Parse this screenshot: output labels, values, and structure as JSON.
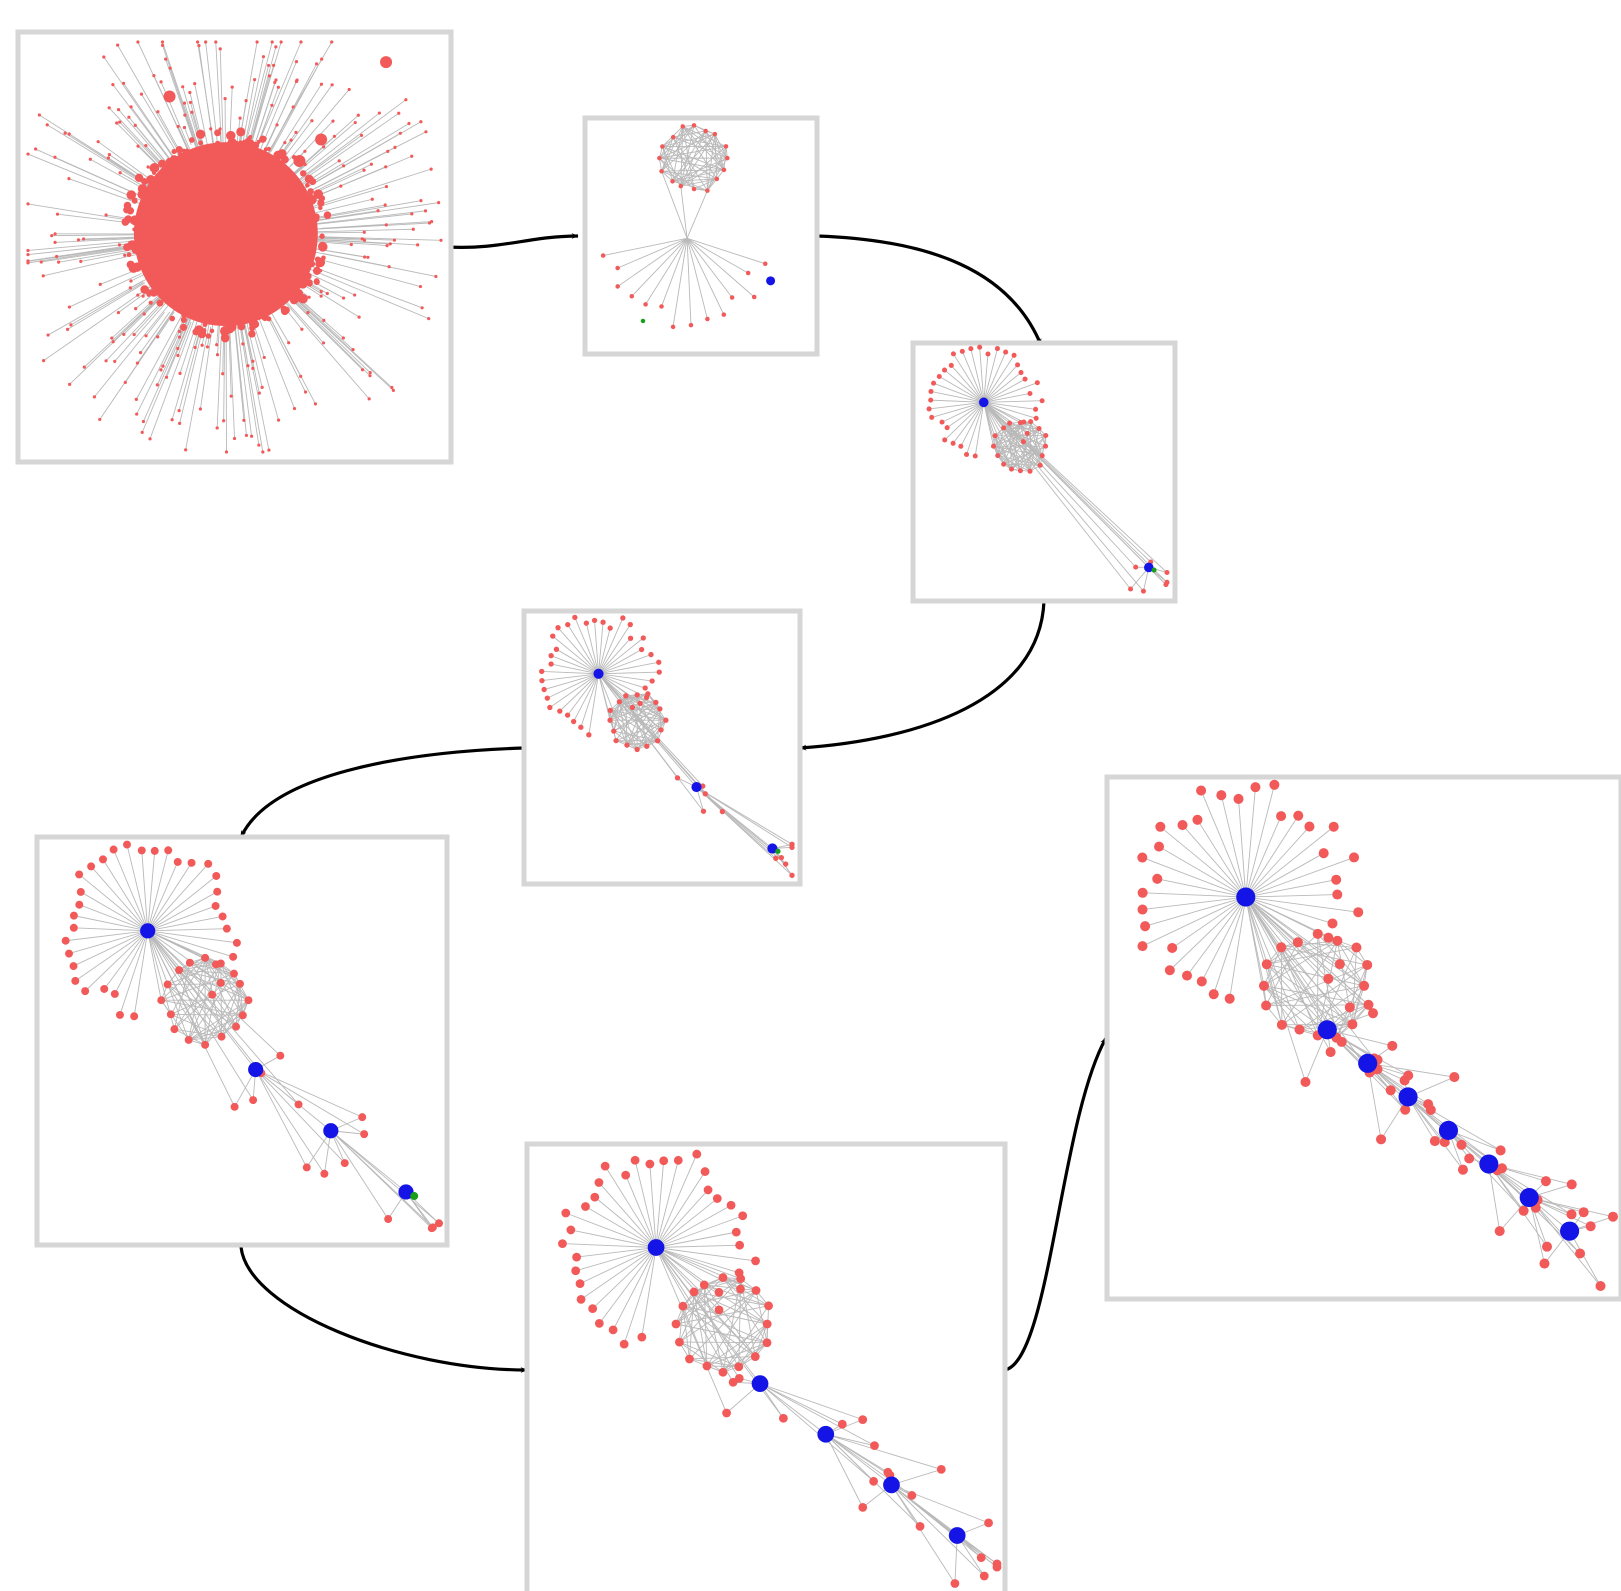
{
  "colors": {
    "background": "#ffffff",
    "frame": "#d6d6d6",
    "edge": "#b9b9b9",
    "node_default": "#f25a5a",
    "node_selected": "#1414e6",
    "node_query": "#1a9e1a",
    "arrow": "#000000"
  },
  "panels": [
    {
      "id": "panel-1",
      "stage": 1,
      "seeds": 0,
      "queries": 0,
      "layout": "hairball"
    },
    {
      "id": "panel-2",
      "stage": 2,
      "seeds": 1,
      "queries": 1,
      "layout": "clique-top"
    },
    {
      "id": "panel-3",
      "stage": 3,
      "seeds": 2,
      "queries": 1,
      "layout": "star-clique-tail"
    },
    {
      "id": "panel-4",
      "stage": 4,
      "seeds": 3,
      "queries": 1,
      "layout": "star-clique-tail"
    },
    {
      "id": "panel-5",
      "stage": 5,
      "seeds": 4,
      "queries": 1,
      "layout": "star-clique-tail"
    },
    {
      "id": "panel-6",
      "stage": 6,
      "seeds": 5,
      "queries": 0,
      "layout": "star-clique-tail"
    },
    {
      "id": "panel-7",
      "stage": 7,
      "seeds": 8,
      "queries": 0,
      "layout": "dense-network"
    }
  ],
  "flow": [
    "panel-1",
    "panel-2",
    "panel-3",
    "panel-4",
    "panel-5",
    "panel-6",
    "panel-7"
  ]
}
